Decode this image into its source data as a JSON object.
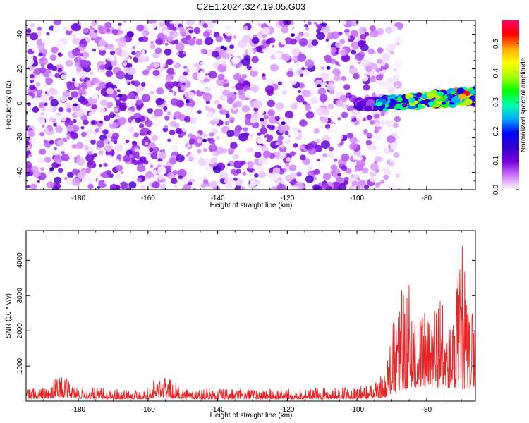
{
  "title": "C2E1.2024.327.19.05.G03",
  "chart_data": [
    {
      "type": "heatmap",
      "xlabel": "Height of straight line (km)",
      "ylabel": "Frequency (Hz)",
      "xlim": [
        -195,
        -66
      ],
      "ylim": [
        -50,
        48
      ],
      "xticks": [
        -180,
        -160,
        -140,
        -120,
        -100,
        -80
      ],
      "yticks": [
        -40,
        -20,
        0,
        20,
        40
      ],
      "colorbar": {
        "label": "Normalized spectral amplitude",
        "range": [
          0,
          0.58
        ],
        "ticks": [
          "0.0",
          "0.1",
          "0.2",
          "0.3",
          "0.4",
          "0.5"
        ],
        "colors": [
          "#ffffff",
          "#cc77ff",
          "#7700dd",
          "#3300cc",
          "#0000ff",
          "#00aaff",
          "#00ffaa",
          "#00ff00",
          "#aaff00",
          "#ffff00",
          "#ffaa00",
          "#ff0000",
          "#ff0066"
        ]
      },
      "features": [
        {
          "region": "noise",
          "x_range": [
            -195,
            -92
          ],
          "y_range": [
            -50,
            48
          ],
          "amplitude": [
            0.0,
            0.12
          ]
        },
        {
          "region": "signal",
          "x_range": [
            -100,
            -66
          ],
          "y_center_start": -1,
          "y_center_end": 4,
          "half_width": 4,
          "amplitude": [
            0.1,
            0.55
          ]
        }
      ]
    },
    {
      "type": "line",
      "xlabel": "Height of straight line (km)",
      "ylabel": "SNR (10 * v/v)",
      "xlim": [
        -195,
        -66
      ],
      "ylim": [
        0,
        4850
      ],
      "xticks": [
        -180,
        -160,
        -140,
        -120,
        -100,
        -80
      ],
      "yticks": [
        1000,
        2000,
        3000,
        4000
      ],
      "color": "#ee2222",
      "series_envelope": {
        "x": [
          -195,
          -188,
          -186,
          -180,
          -170,
          -160,
          -157,
          -150,
          -140,
          -130,
          -120,
          -110,
          -100,
          -95,
          -92,
          -90,
          -88,
          -86,
          -84,
          -82,
          -80,
          -78,
          -76,
          -74,
          -72,
          -70,
          -68,
          -66
        ],
        "baseline": [
          170,
          200,
          350,
          200,
          170,
          180,
          300,
          170,
          170,
          170,
          170,
          170,
          190,
          230,
          300,
          600,
          800,
          1000,
          1100,
          1100,
          1150,
          1100,
          1100,
          1050,
          1000,
          950,
          1000,
          1200
        ],
        "peak": [
          380,
          420,
          800,
          420,
          360,
          380,
          850,
          380,
          360,
          360,
          360,
          380,
          420,
          520,
          900,
          2100,
          3000,
          3800,
          3200,
          2900,
          2400,
          3000,
          3500,
          2300,
          2600,
          4850,
          2800,
          2900
        ]
      }
    }
  ]
}
